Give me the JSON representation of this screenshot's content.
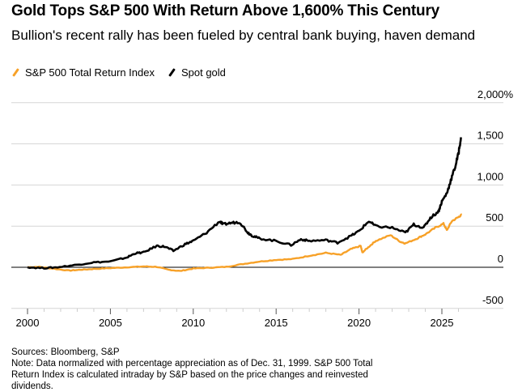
{
  "header": {
    "title": "Gold Tops S&P 500 With Return Above 1,600% This Century",
    "subtitle": "Bullion's recent rally has been fueled by central bank buying, haven demand"
  },
  "footer": {
    "sources": "Sources: Bloomberg, S&P",
    "note": "Note: Data normalized with percentage appreciation as of Dec. 31, 1999. S&P 500 Total Return Index is calculated intraday by S&P based on the price changes and reinvested dividends."
  },
  "chart_data": {
    "type": "line",
    "title": "Gold Tops S&P 500 With Return Above 1,600% This Century",
    "subtitle": "Bullion's recent rally has been fueled by central bank buying, haven demand",
    "xlabel": "",
    "ylabel": "",
    "xlim": [
      1999.9,
      2027.5
    ],
    "ylim": [
      -500,
      2000
    ],
    "x_ticks": [
      2000,
      2005,
      2010,
      2015,
      2020,
      2025
    ],
    "x_tick_labels": [
      "2000",
      "2005",
      "2010",
      "2015",
      "2020",
      "2025"
    ],
    "y_ticks": [
      2000,
      1500,
      1000,
      500,
      0,
      -500
    ],
    "y_tick_labels": [
      "2,000%",
      "1,500",
      "1,000",
      "500",
      "0",
      "-500"
    ],
    "grid": true,
    "legend_position": "top-left",
    "series": [
      {
        "name": "S&P 500 Total Return Index",
        "color": "#f7a128",
        "x": [
          2000.0,
          2000.7,
          2001.5,
          2002.5,
          2003.2,
          2004.0,
          2005.0,
          2006.0,
          2007.0,
          2007.8,
          2008.5,
          2009.2,
          2010.0,
          2011.0,
          2012.0,
          2013.0,
          2014.0,
          2015.0,
          2016.0,
          2017.0,
          2018.0,
          2018.9,
          2019.5,
          2020.1,
          2020.2,
          2020.6,
          2021.0,
          2021.9,
          2022.5,
          2022.8,
          2023.5,
          2024.0,
          2024.6,
          2025.1,
          2025.3,
          2025.6,
          2026.0,
          2026.2
        ],
        "y": [
          0,
          5,
          -15,
          -40,
          -30,
          -20,
          -10,
          0,
          10,
          5,
          -30,
          -45,
          -15,
          -5,
          5,
          40,
          70,
          90,
          100,
          140,
          175,
          150,
          220,
          260,
          180,
          250,
          320,
          390,
          310,
          290,
          350,
          400,
          480,
          530,
          450,
          560,
          610,
          640
        ]
      },
      {
        "name": "Spot gold",
        "color": "#000000",
        "x": [
          2000.0,
          2001.0,
          2001.8,
          2003.0,
          2004.0,
          2005.0,
          2006.0,
          2006.5,
          2007.0,
          2007.8,
          2008.3,
          2008.8,
          2009.5,
          2010.0,
          2010.8,
          2011.6,
          2011.8,
          2012.3,
          2012.8,
          2013.3,
          2013.6,
          2014.0,
          2015.0,
          2015.9,
          2016.5,
          2017.0,
          2018.0,
          2018.7,
          2019.5,
          2020.0,
          2020.6,
          2021.0,
          2022.0,
          2022.8,
          2023.3,
          2023.9,
          2024.3,
          2024.8,
          2025.0,
          2025.3,
          2025.5,
          2025.8,
          2026.0,
          2026.15
        ],
        "y": [
          0,
          -10,
          0,
          30,
          60,
          70,
          120,
          170,
          180,
          260,
          250,
          200,
          280,
          320,
          420,
          560,
          520,
          540,
          550,
          420,
          380,
          350,
          320,
          270,
          340,
          320,
          330,
          300,
          380,
          440,
          560,
          500,
          480,
          420,
          520,
          480,
          600,
          680,
          800,
          900,
          1030,
          1220,
          1380,
          1580
        ]
      }
    ]
  }
}
